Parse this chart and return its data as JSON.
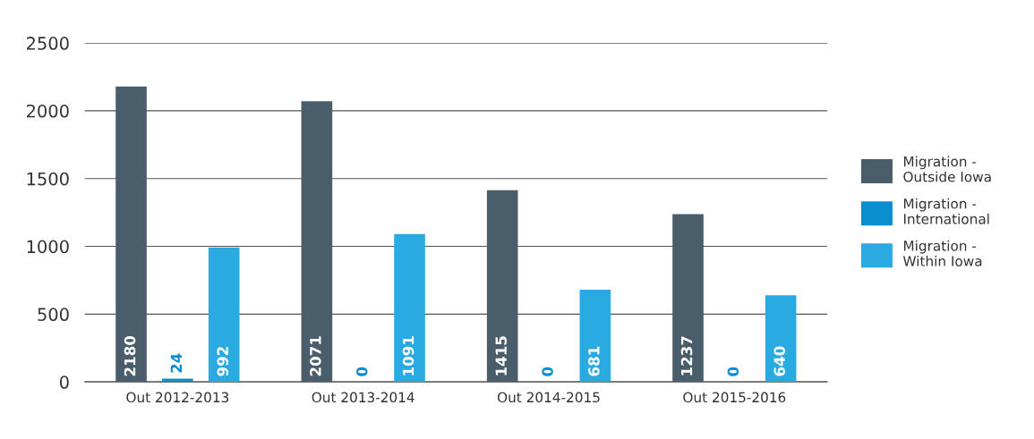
{
  "chart_data": {
    "type": "bar",
    "categories": [
      "Out 2012-2013",
      "Out 2013-2014",
      "Out 2014-2015",
      "Out 2015-2016"
    ],
    "series": [
      {
        "name": "Migration -\nOutside Iowa",
        "color": "#4a5d6b",
        "values": [
          2180,
          2071,
          1415,
          1237
        ]
      },
      {
        "name": "Migration -\nInternational",
        "color": "#0b8ed0",
        "values": [
          24,
          0,
          0,
          0
        ]
      },
      {
        "name": "Migration -\nWithin Iowa",
        "color": "#29abe2",
        "values": [
          992,
          1091,
          681,
          640
        ]
      }
    ],
    "ylim": [
      0,
      2500
    ],
    "yticks": [
      0,
      500,
      1000,
      1500,
      2000,
      2500
    ],
    "grid": "y",
    "legend": "right",
    "data_labels": true
  }
}
